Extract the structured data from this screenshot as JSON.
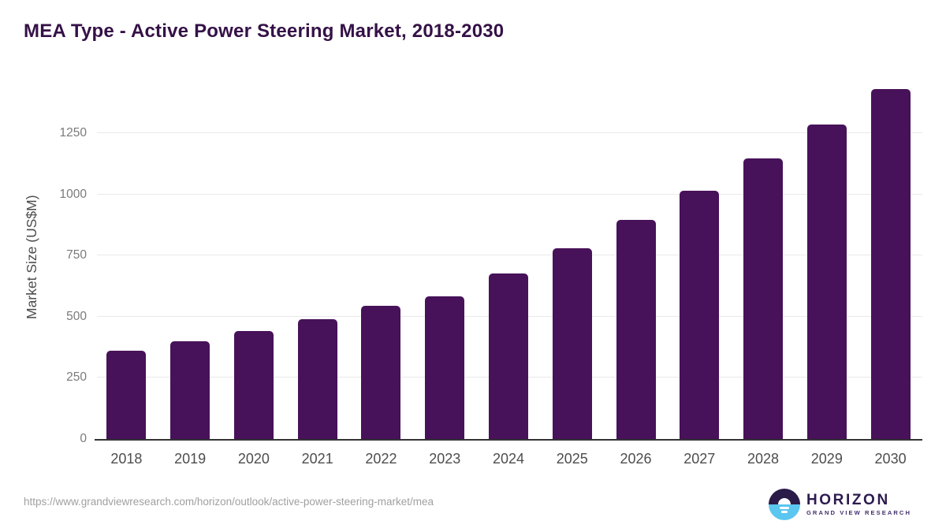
{
  "title": "MEA Type - Active Power Steering Market, 2018-2030",
  "footer": {
    "source_url": "https://www.grandviewresearch.com/horizon/outlook/active-power-steering-market/mea",
    "logo": {
      "brand": "HORIZON",
      "sub_brand": "GRAND VIEW RESEARCH"
    }
  },
  "colors": {
    "bar": "#471259",
    "title": "#351147",
    "axis_text": "#4d4d4d",
    "tick_text": "#7a7a7a",
    "gridline": "#e9e9e9",
    "baseline": "#333333",
    "url_text": "#a0a0a0",
    "logo_dark": "#2b1b49",
    "logo_blue": "#5bc6f0",
    "logo_text": "#2d1b4e",
    "logo_sub": "#43306b"
  },
  "chart_data": {
    "type": "bar",
    "title": "MEA Type - Active Power Steering Market, 2018-2030",
    "categories": [
      "2018",
      "2019",
      "2020",
      "2021",
      "2022",
      "2023",
      "2024",
      "2025",
      "2026",
      "2027",
      "2028",
      "2029",
      "2030"
    ],
    "values": [
      361,
      401,
      443,
      490,
      545,
      582,
      677,
      781,
      896,
      1016,
      1147,
      1285,
      1430
    ],
    "xlabel": "",
    "ylabel": "Market Size (US$M)",
    "y_ticks": [
      0,
      250,
      500,
      750,
      1000,
      1250
    ],
    "ylim": [
      0,
      1488
    ],
    "grid": true,
    "legend": false,
    "bar_color": "#471259"
  }
}
